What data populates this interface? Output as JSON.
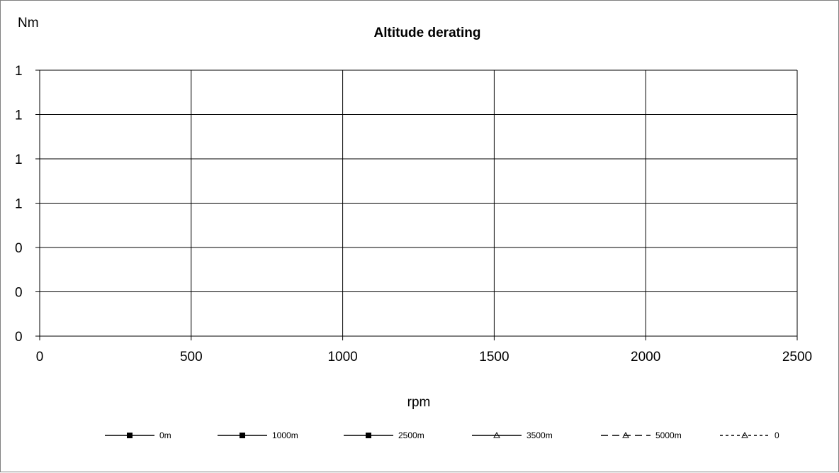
{
  "chart_data": {
    "type": "line",
    "title": "Altitude derating",
    "xlabel": "rpm",
    "ylabel": "Nm",
    "xlim": [
      0,
      2500
    ],
    "x_ticks": [
      0,
      500,
      1000,
      1500,
      2000,
      2500
    ],
    "x_tick_labels": [
      "0",
      "500",
      "1000",
      "1500",
      "2000",
      "2500"
    ],
    "y_tick_labels": [
      "0",
      "0",
      "0",
      "1",
      "1",
      "1",
      "1"
    ],
    "grid": true,
    "legend_position": "bottom",
    "series": [
      {
        "name": "0m",
        "marker": "square",
        "dash": "solid",
        "x": [],
        "y": []
      },
      {
        "name": "1000m",
        "marker": "square",
        "dash": "solid",
        "x": [],
        "y": []
      },
      {
        "name": "2500m",
        "marker": "square",
        "dash": "solid",
        "x": [],
        "y": []
      },
      {
        "name": "3500m",
        "marker": "triangle",
        "dash": "solid",
        "x": [],
        "y": []
      },
      {
        "name": "5000m",
        "marker": "triangle",
        "dash": "dash",
        "x": [],
        "y": []
      },
      {
        "name": "0",
        "marker": "triangle",
        "dash": "dot",
        "x": [],
        "y": []
      }
    ]
  }
}
